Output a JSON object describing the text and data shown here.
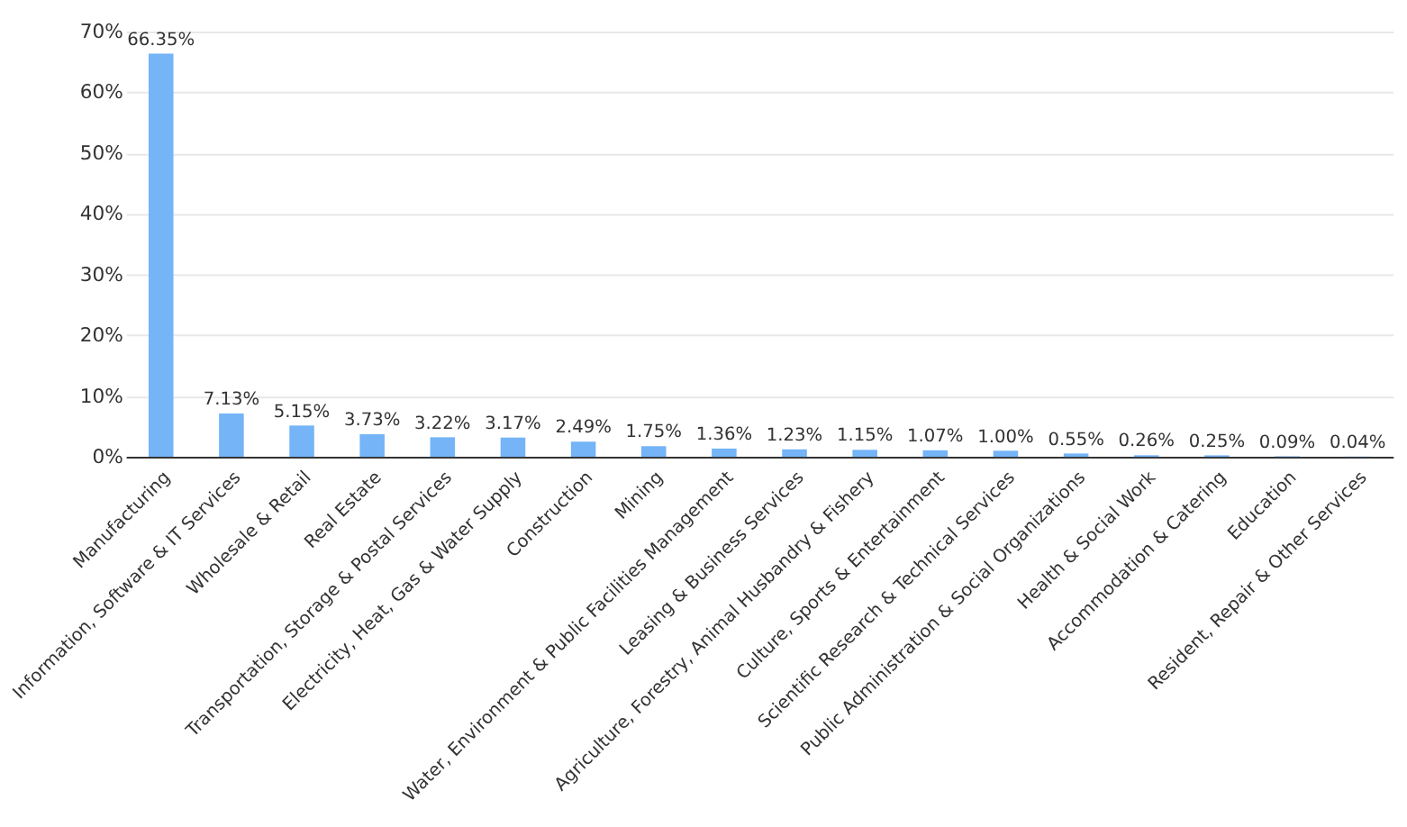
{
  "chart_data": {
    "type": "bar",
    "categories": [
      "Manufacturing",
      "Information, Software & IT Services",
      "Wholesale & Retail",
      "Real Estate",
      "Transportation, Storage & Postal Services",
      "Electricity, Heat, Gas & Water Supply",
      "Construction",
      "Mining",
      "Water, Environment & Public Facilities Management",
      "Leasing & Business Services",
      "Agriculture, Forestry, Animal Husbandry & Fishery",
      "Culture, Sports & Entertainment",
      "Scientific Research & Technical Services",
      "Public Administration & Social Organizations",
      "Health & Social Work",
      "Accommodation & Catering",
      "Education",
      "Resident, Repair & Other Services"
    ],
    "values": [
      66.35,
      7.13,
      5.15,
      3.73,
      3.22,
      3.17,
      2.49,
      1.75,
      1.36,
      1.23,
      1.15,
      1.07,
      1.0,
      0.55,
      0.26,
      0.25,
      0.09,
      0.04
    ],
    "value_labels": [
      "66.35%",
      "7.13%",
      "5.15%",
      "3.73%",
      "3.22%",
      "3.17%",
      "2.49%",
      "1.75%",
      "1.36%",
      "1.23%",
      "1.15%",
      "1.07%",
      "1.00%",
      "0.55%",
      "0.26%",
      "0.25%",
      "0.09%",
      "0.04%"
    ],
    "color": "#74b4f7",
    "ylim": [
      0,
      70
    ],
    "yticks": [
      {
        "value": 0,
        "label": "0%"
      },
      {
        "value": 10,
        "label": "10%"
      },
      {
        "value": 20,
        "label": "20%"
      },
      {
        "value": 30,
        "label": "30%"
      },
      {
        "value": 40,
        "label": "40%"
      },
      {
        "value": 50,
        "label": "50%"
      },
      {
        "value": 60,
        "label": "60%"
      },
      {
        "value": 70,
        "label": "70%"
      }
    ],
    "grid": "y"
  }
}
